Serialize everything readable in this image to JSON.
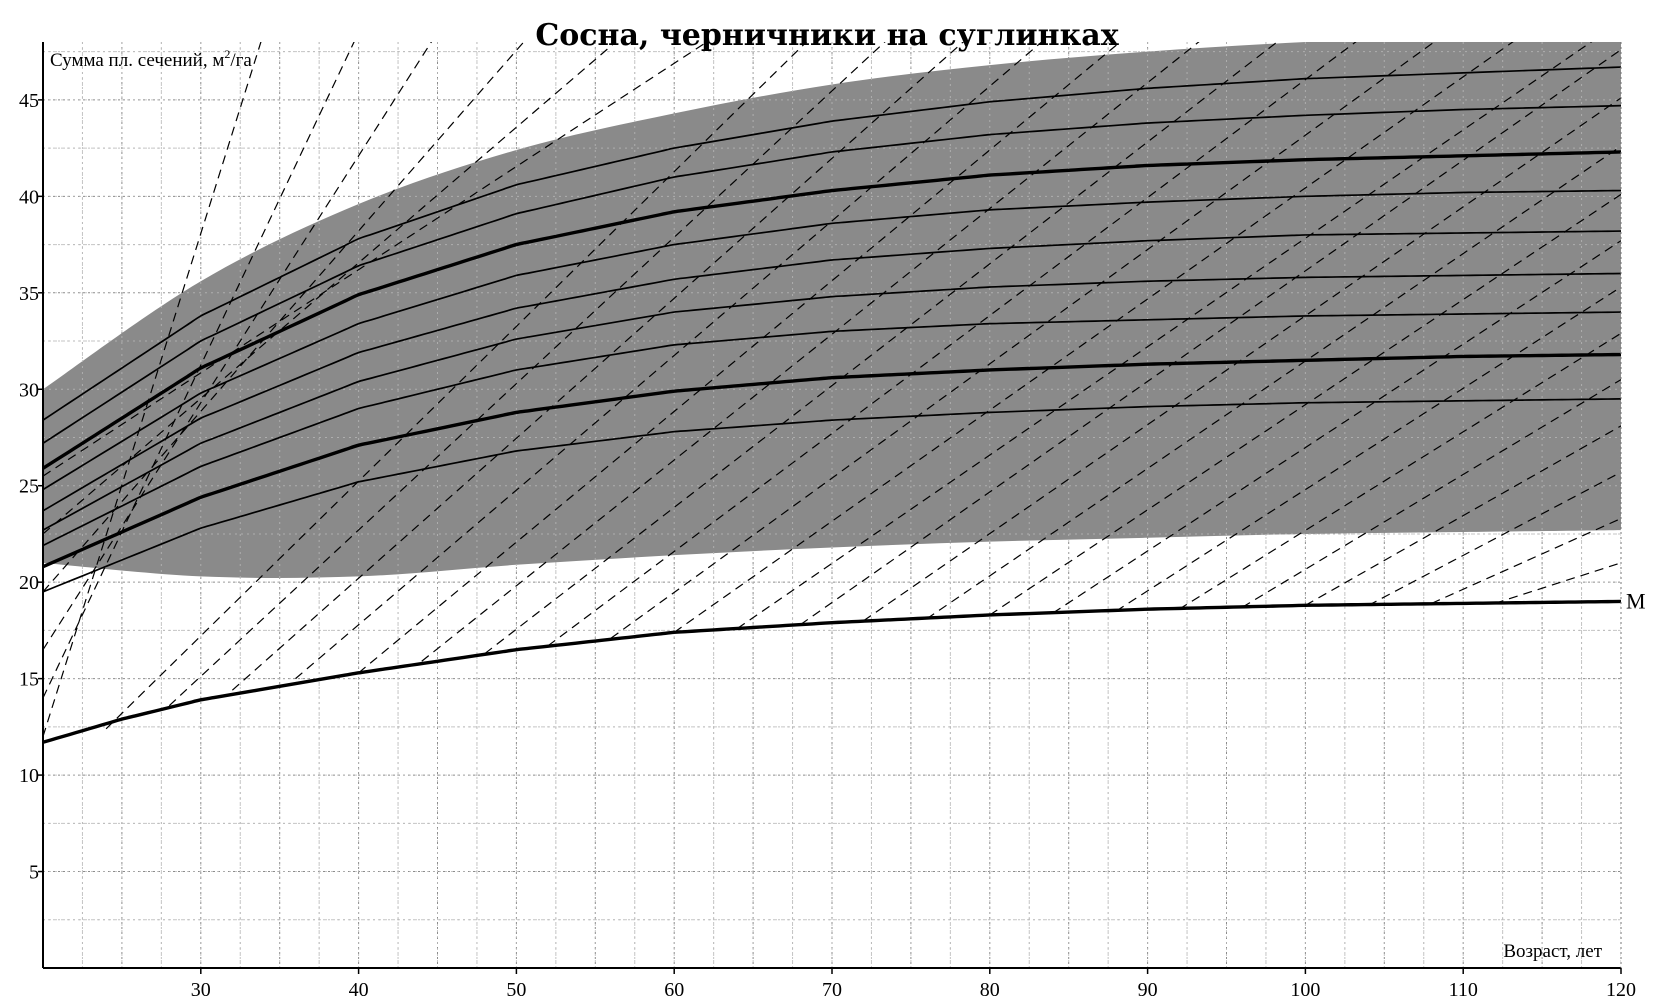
{
  "chart_data": {
    "type": "line",
    "title": "Сосна, черничники на суглинках",
    "ylabel_text": "Сумма пл. сечений, м",
    "ylabel_sup": "2",
    "ylabel_tail": "/га",
    "xlabel": "Возраст, лет",
    "xlim": [
      20,
      120
    ],
    "ylim": [
      0,
      48
    ],
    "x_ticks": [
      30,
      40,
      50,
      60,
      70,
      80,
      90,
      100,
      110,
      120
    ],
    "y_ticks": [
      5,
      10,
      15,
      20,
      25,
      30,
      35,
      40,
      45
    ],
    "grid": true,
    "colors": {
      "band_fill": "#8a8a8a",
      "line": "#000000",
      "grid": "#9a9a9a",
      "background": "#ffffff"
    },
    "band": {
      "name": "",
      "upper": {
        "x": [
          20,
          30,
          40,
          50,
          60,
          70,
          80,
          90,
          100,
          110,
          120
        ],
        "y": [
          30.0,
          35.6,
          39.6,
          42.4,
          44.3,
          45.8,
          46.8,
          47.5,
          48.0,
          48.3,
          48.6
        ]
      },
      "lower": {
        "x": [
          20,
          30,
          40,
          50,
          60,
          70,
          80,
          90,
          100,
          110,
          120
        ],
        "y": [
          21.0,
          20.3,
          20.3,
          20.9,
          21.4,
          21.8,
          22.1,
          22.3,
          22.5,
          22.6,
          22.7
        ]
      }
    },
    "series": [
      {
        "x": [
          20,
          30,
          40,
          50,
          60,
          70,
          80,
          90,
          100,
          110,
          120
        ],
        "y": [
          28.4,
          33.8,
          37.8,
          40.6,
          42.5,
          43.9,
          44.9,
          45.6,
          46.1,
          46.4,
          46.7
        ]
      },
      {
        "x": [
          20,
          30,
          40,
          50,
          60,
          70,
          80,
          90,
          100,
          110,
          120
        ],
        "y": [
          27.2,
          32.5,
          36.4,
          39.1,
          41.0,
          42.3,
          43.2,
          43.8,
          44.2,
          44.5,
          44.7
        ]
      },
      {
        "x": [
          20,
          30,
          40,
          50,
          60,
          70,
          80,
          90,
          100,
          110,
          120
        ],
        "y": [
          25.9,
          31.1,
          34.9,
          37.5,
          39.2,
          40.3,
          41.1,
          41.6,
          41.9,
          42.1,
          42.3
        ],
        "bold": true
      },
      {
        "x": [
          20,
          30,
          40,
          50,
          60,
          70,
          80,
          90,
          100,
          110,
          120
        ],
        "y": [
          24.8,
          29.8,
          33.4,
          35.9,
          37.5,
          38.6,
          39.3,
          39.7,
          40.0,
          40.2,
          40.3
        ]
      },
      {
        "x": [
          20,
          30,
          40,
          50,
          60,
          70,
          80,
          90,
          100,
          110,
          120
        ],
        "y": [
          23.7,
          28.5,
          31.9,
          34.2,
          35.7,
          36.7,
          37.3,
          37.7,
          38.0,
          38.1,
          38.2
        ]
      },
      {
        "x": [
          20,
          30,
          40,
          50,
          60,
          70,
          80,
          90,
          100,
          110,
          120
        ],
        "y": [
          22.7,
          27.2,
          30.4,
          32.6,
          34.0,
          34.8,
          35.3,
          35.6,
          35.8,
          35.9,
          36.0
        ]
      },
      {
        "x": [
          20,
          30,
          40,
          50,
          60,
          70,
          80,
          90,
          100,
          110,
          120
        ],
        "y": [
          21.9,
          26.0,
          29.0,
          31.0,
          32.3,
          33.0,
          33.4,
          33.6,
          33.8,
          33.9,
          34.0
        ]
      },
      {
        "x": [
          20,
          30,
          40,
          50,
          60,
          70,
          80,
          90,
          100,
          110,
          120
        ],
        "y": [
          20.8,
          24.4,
          27.1,
          28.8,
          29.9,
          30.6,
          31.0,
          31.3,
          31.5,
          31.7,
          31.8
        ],
        "bold": true
      },
      {
        "x": [
          20,
          30,
          40,
          50,
          60,
          70,
          80,
          90,
          100,
          110,
          120
        ],
        "y": [
          19.5,
          22.8,
          25.2,
          26.8,
          27.8,
          28.4,
          28.8,
          29.1,
          29.3,
          29.4,
          29.5
        ]
      },
      {
        "name": "M",
        "x": [
          20,
          25,
          30,
          40,
          50,
          60,
          70,
          80,
          90,
          100,
          110,
          120
        ],
        "y": [
          11.7,
          12.9,
          13.9,
          15.3,
          16.5,
          17.4,
          17.9,
          18.3,
          18.6,
          18.8,
          18.9,
          19.0
        ],
        "bold": true
      }
    ],
    "dashed_lines": [
      {
        "x": [
          20,
          34
        ],
        "y": [
          12.0,
          48.5
        ]
      },
      {
        "x": [
          20,
          40
        ],
        "y": [
          14.0,
          48.5
        ]
      },
      {
        "x": [
          20,
          45
        ],
        "y": [
          16.5,
          48.5
        ]
      },
      {
        "x": [
          20,
          51
        ],
        "y": [
          19.5,
          48.5
        ]
      },
      {
        "x": [
          20,
          57
        ],
        "y": [
          22.5,
          48.5
        ]
      },
      {
        "x": [
          20,
          63
        ],
        "y": [
          25.5,
          48.5
        ]
      },
      {
        "x": [
          24,
          69
        ],
        "y": [
          12.4,
          48.5
        ]
      },
      {
        "x": [
          28,
          74
        ],
        "y": [
          13.6,
          48.5
        ]
      },
      {
        "x": [
          32,
          79
        ],
        "y": [
          14.4,
          48.5
        ]
      },
      {
        "x": [
          36,
          84
        ],
        "y": [
          15.0,
          48.5
        ]
      },
      {
        "x": [
          40,
          89
        ],
        "y": [
          15.3,
          48.5
        ]
      },
      {
        "x": [
          44,
          94
        ],
        "y": [
          15.9,
          48.5
        ]
      },
      {
        "x": [
          48,
          99
        ],
        "y": [
          16.3,
          48.5
        ]
      },
      {
        "x": [
          52,
          104
        ],
        "y": [
          16.7,
          48.5
        ]
      },
      {
        "x": [
          56,
          109
        ],
        "y": [
          17.1,
          48.5
        ]
      },
      {
        "x": [
          60,
          114
        ],
        "y": [
          17.4,
          48.5
        ]
      },
      {
        "x": [
          64,
          119
        ],
        "y": [
          17.6,
          48.5
        ]
      },
      {
        "x": [
          68,
          120
        ],
        "y": [
          17.8,
          47.6
        ]
      },
      {
        "x": [
          72,
          120
        ],
        "y": [
          18.0,
          45.1
        ]
      },
      {
        "x": [
          76,
          120
        ],
        "y": [
          18.1,
          42.6
        ]
      },
      {
        "x": [
          80,
          120
        ],
        "y": [
          18.3,
          40.1
        ]
      },
      {
        "x": [
          84,
          120
        ],
        "y": [
          18.4,
          37.7
        ]
      },
      {
        "x": [
          88,
          120
        ],
        "y": [
          18.5,
          35.3
        ]
      },
      {
        "x": [
          92,
          120
        ],
        "y": [
          18.6,
          32.9
        ]
      },
      {
        "x": [
          96,
          120
        ],
        "y": [
          18.7,
          30.5
        ]
      },
      {
        "x": [
          100,
          120
        ],
        "y": [
          18.8,
          28.1
        ]
      },
      {
        "x": [
          104,
          120
        ],
        "y": [
          18.8,
          25.7
        ]
      },
      {
        "x": [
          108,
          120
        ],
        "y": [
          18.9,
          23.3
        ]
      },
      {
        "x": [
          112,
          120
        ],
        "y": [
          18.9,
          21.0
        ]
      }
    ]
  }
}
